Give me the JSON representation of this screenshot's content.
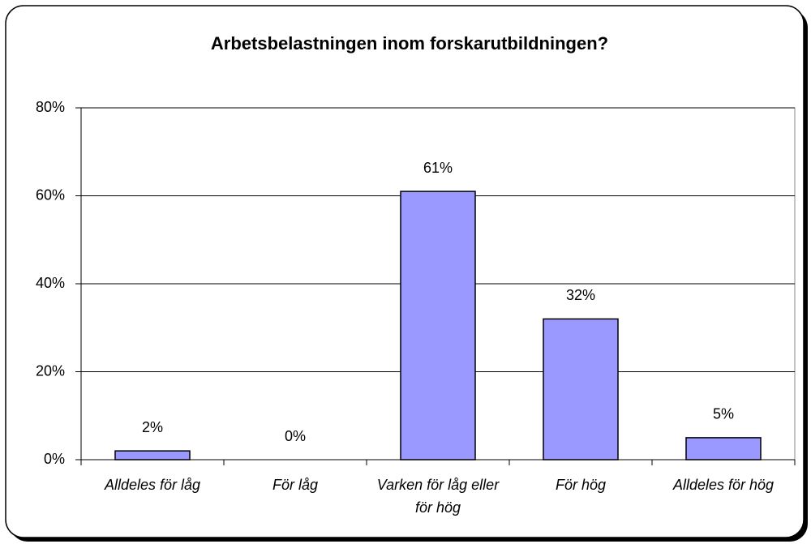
{
  "chart_data": {
    "type": "bar",
    "title": "Arbetsbelastningen inom forskarutbildningen?",
    "categories": [
      "Alldeles för låg",
      "För låg",
      "Varken för låg eller för hög",
      "För hög",
      "Alldeles för hög"
    ],
    "values": [
      2,
      0,
      61,
      32,
      5
    ],
    "value_labels": [
      "2%",
      "0%",
      "61%",
      "32%",
      "5%"
    ],
    "color": "#9999ff",
    "ylim": [
      0,
      80
    ],
    "yticks": [
      {
        "value": 0,
        "label": "0%"
      },
      {
        "value": 20,
        "label": "20%"
      },
      {
        "value": 40,
        "label": "40%"
      },
      {
        "value": 60,
        "label": "60%"
      },
      {
        "value": 80,
        "label": "80%"
      }
    ],
    "grid": true
  }
}
